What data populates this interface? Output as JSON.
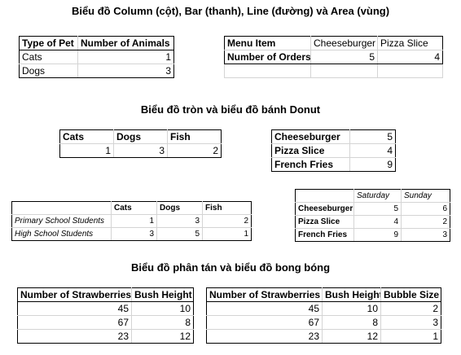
{
  "titles": {
    "column_bar": "Biểu đồ Column (cột), Bar (thanh), Line (đường) và Area (vùng)",
    "pie_donut": "Biểu đồ tròn và biểu đồ bánh Donut",
    "scatter_bubble": "Biểu đồ phân tán và biểu đồ bong bóng"
  },
  "t1": {
    "h1": "Type of Pet",
    "h2": "Number of Animals",
    "r1a": "Cats",
    "r1b": "1",
    "r2a": "Dogs",
    "r2b": "3"
  },
  "t2": {
    "h0": "Menu Item",
    "h1": "Cheeseburger",
    "h2": "Pizza Slice",
    "r0": "Number of Orders",
    "v1": "5",
    "v2": "4"
  },
  "t3": {
    "h1": "Cats",
    "h2": "Dogs",
    "h3": "Fish",
    "v1": "1",
    "v2": "3",
    "v3": "2"
  },
  "t4": {
    "a1": "Cheeseburger",
    "b1": "5",
    "a2": "Pizza Slice",
    "b2": "4",
    "a3": "French Fries",
    "b3": "9"
  },
  "t5": {
    "h1": "Cats",
    "h2": "Dogs",
    "h3": "Fish",
    "r1": "Primary School Students",
    "r1v1": "1",
    "r1v2": "3",
    "r1v3": "2",
    "r2": "High School Students",
    "r2v1": "3",
    "r2v2": "5",
    "r2v3": "1"
  },
  "t6": {
    "h1": "Saturday",
    "h2": "Sunday",
    "r1": "Cheeseburger",
    "r1v1": "5",
    "r1v2": "6",
    "r2": "Pizza Slice",
    "r2v1": "4",
    "r2v2": "2",
    "r3": "French Fries",
    "r3v1": "9",
    "r3v2": "3"
  },
  "t7": {
    "h1": "Number of Strawberries",
    "h2": "Bush Height",
    "r1a": "45",
    "r1b": "10",
    "r2a": "67",
    "r2b": "8",
    "r3a": "23",
    "r3b": "12"
  },
  "t8": {
    "h1": "Number of Strawberries",
    "h2": "Bush Height",
    "h3": "Bubble Size",
    "r1a": "45",
    "r1b": "10",
    "r1c": "2",
    "r2a": "67",
    "r2b": "8",
    "r2c": "3",
    "r3a": "23",
    "r3b": "12",
    "r3c": "1"
  }
}
